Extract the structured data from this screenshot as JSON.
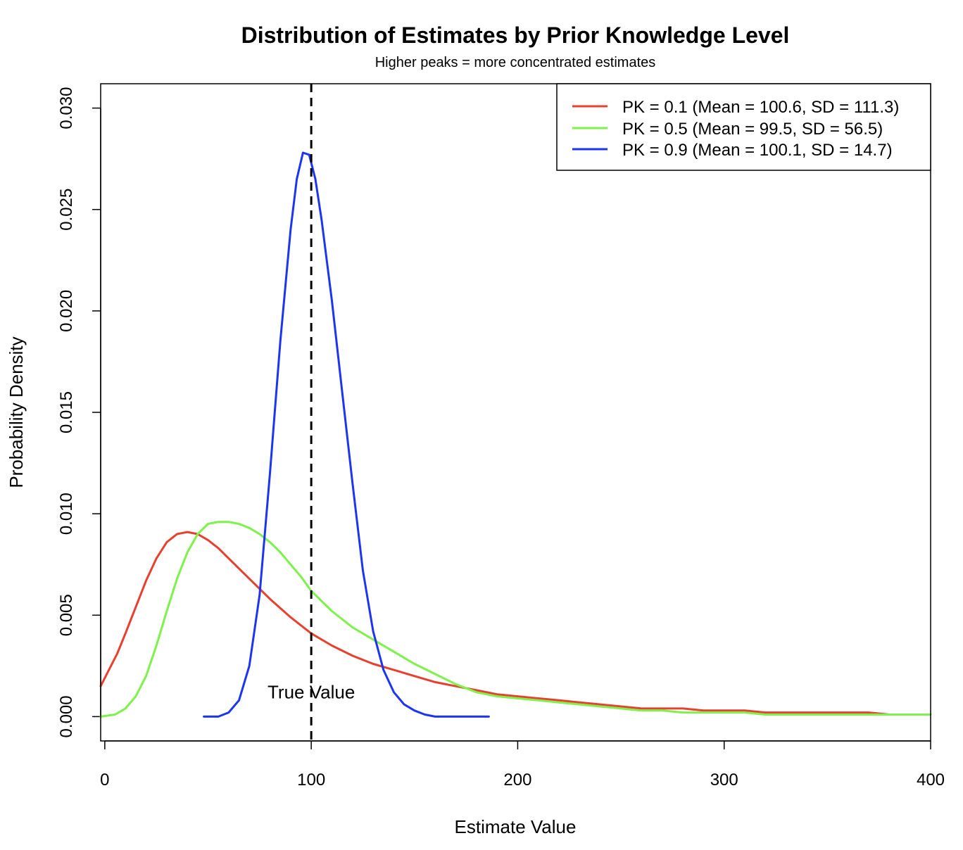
{
  "chart_data": {
    "type": "line",
    "title": "Distribution of Estimates by Prior Knowledge Level",
    "subtitle": "Higher peaks = more concentrated estimates",
    "xlabel": "Estimate Value",
    "ylabel": "Probability Density",
    "xlim": [
      -2,
      400
    ],
    "ylim": [
      -0.0012,
      0.0312
    ],
    "xticks": [
      0,
      100,
      200,
      300,
      400
    ],
    "xtick_labels": [
      "0",
      "100",
      "200",
      "300",
      "400"
    ],
    "yticks": [
      0.0,
      0.005,
      0.01,
      0.015,
      0.02,
      0.025,
      0.03
    ],
    "ytick_labels": [
      "0.000",
      "0.005",
      "0.010",
      "0.015",
      "0.020",
      "0.025",
      "0.030"
    ],
    "grid": false,
    "legend_position": "top-right",
    "reference_line": {
      "x": 100,
      "style": "dashed",
      "color": "#000000",
      "label": "True Value",
      "label_y": 0.0009
    },
    "series": [
      {
        "name": "PK = 0.1 (Mean = 100.6, SD = 111.3)",
        "color": "#e8402f",
        "x": [
          -2,
          2,
          6,
          10,
          15,
          20,
          25,
          30,
          35,
          40,
          45,
          50,
          55,
          60,
          70,
          80,
          90,
          100,
          110,
          120,
          130,
          140,
          150,
          160,
          170,
          180,
          190,
          200,
          210,
          220,
          230,
          240,
          250,
          260,
          270,
          280,
          290,
          300,
          310,
          320,
          330,
          340,
          350,
          360,
          370,
          380,
          390,
          400
        ],
        "y": [
          0.0015,
          0.0023,
          0.0031,
          0.0041,
          0.0054,
          0.0067,
          0.0078,
          0.0086,
          0.009,
          0.0091,
          0.009,
          0.0087,
          0.0083,
          0.0078,
          0.0068,
          0.0058,
          0.0049,
          0.0041,
          0.0035,
          0.003,
          0.0026,
          0.0023,
          0.002,
          0.0017,
          0.0015,
          0.0013,
          0.0011,
          0.001,
          0.0009,
          0.0008,
          0.0007,
          0.0006,
          0.0005,
          0.0004,
          0.0004,
          0.0004,
          0.0003,
          0.0003,
          0.0003,
          0.0002,
          0.0002,
          0.0002,
          0.0002,
          0.0002,
          0.0002,
          0.0001,
          0.0001,
          0.0001
        ]
      },
      {
        "name": "PK = 0.5 (Mean = 99.5, SD = 56.5)",
        "color": "#7df24b",
        "x": [
          -2,
          5,
          10,
          15,
          20,
          25,
          30,
          35,
          40,
          45,
          50,
          55,
          60,
          65,
          70,
          75,
          80,
          85,
          90,
          95,
          100,
          110,
          120,
          130,
          140,
          150,
          160,
          170,
          180,
          190,
          200,
          210,
          220,
          230,
          240,
          250,
          260,
          270,
          280,
          290,
          300,
          310,
          320,
          330,
          340,
          350,
          360,
          370,
          380,
          390,
          400
        ],
        "y": [
          0.0,
          0.0001,
          0.0004,
          0.001,
          0.002,
          0.0035,
          0.0052,
          0.0068,
          0.0081,
          0.009,
          0.0095,
          0.0096,
          0.0096,
          0.0095,
          0.0093,
          0.009,
          0.0086,
          0.0081,
          0.0075,
          0.0069,
          0.0062,
          0.0052,
          0.0044,
          0.0038,
          0.0032,
          0.0026,
          0.0021,
          0.0016,
          0.0012,
          0.001,
          0.0009,
          0.0008,
          0.0007,
          0.0006,
          0.0005,
          0.0004,
          0.0003,
          0.0003,
          0.0002,
          0.0002,
          0.0002,
          0.0002,
          0.0001,
          0.0001,
          0.0001,
          0.0001,
          0.0001,
          0.0001,
          0.0001,
          0.0001,
          0.0001
        ]
      },
      {
        "name": "PK = 0.9 (Mean = 100.1, SD = 14.7)",
        "color": "#1c35f2",
        "x": [
          48,
          55,
          60,
          65,
          70,
          75,
          80,
          85,
          90,
          93,
          96,
          99,
          102,
          105,
          110,
          115,
          120,
          125,
          130,
          135,
          140,
          145,
          150,
          155,
          160,
          170,
          180,
          186
        ],
        "y": [
          0.0,
          0.0,
          0.0002,
          0.0008,
          0.0025,
          0.006,
          0.012,
          0.0185,
          0.024,
          0.0265,
          0.0278,
          0.0277,
          0.0265,
          0.0245,
          0.0205,
          0.016,
          0.0115,
          0.0072,
          0.0042,
          0.0023,
          0.0012,
          0.0006,
          0.0003,
          0.0001,
          0.0,
          0.0,
          0.0,
          0.0
        ]
      }
    ]
  }
}
